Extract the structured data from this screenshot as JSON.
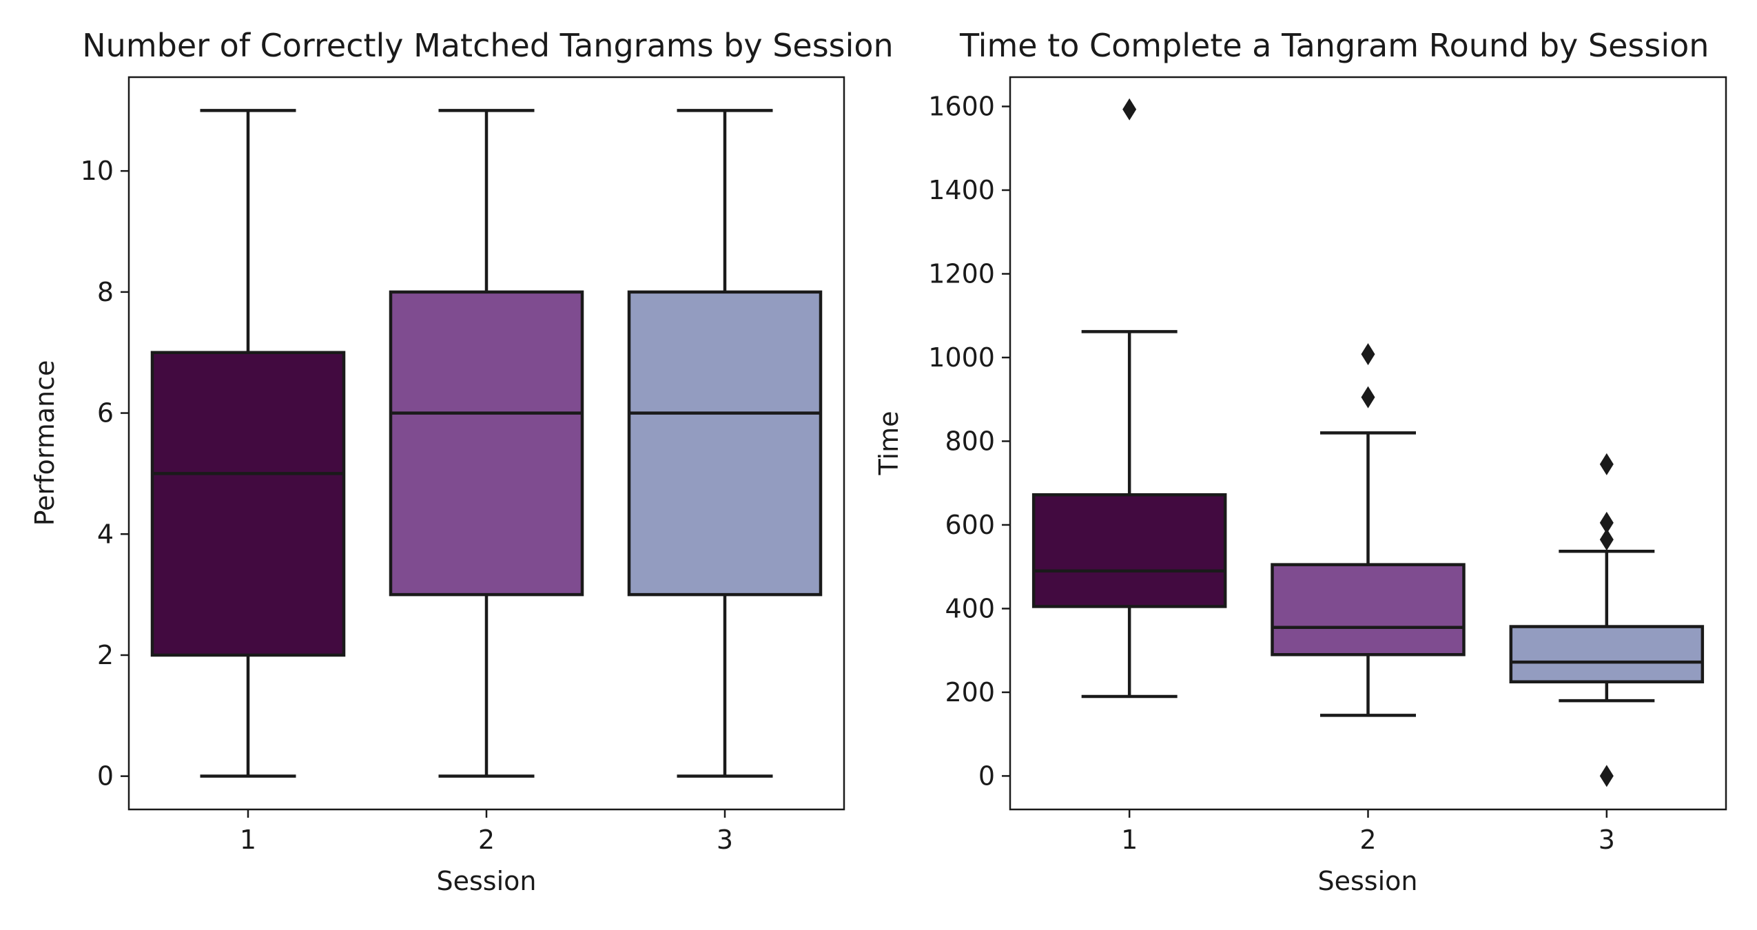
{
  "chart_data": [
    {
      "type": "box",
      "title": "Number of Correctly Matched Tangrams by Session",
      "xlabel": "Session",
      "ylabel": "Performance",
      "ylim": [
        -0.55,
        11.55
      ],
      "yticks": [
        0,
        2,
        4,
        6,
        8,
        10
      ],
      "categories": [
        "1",
        "2",
        "3"
      ],
      "boxes": [
        {
          "category": "1",
          "whisker_low": 0,
          "q1": 2,
          "median": 5,
          "q3": 7,
          "whisker_high": 11,
          "outliers": [],
          "color": "#420a40"
        },
        {
          "category": "2",
          "whisker_low": 0,
          "q1": 3,
          "median": 6,
          "q3": 8,
          "whisker_high": 11,
          "outliers": [],
          "color": "#7f4c90"
        },
        {
          "category": "3",
          "whisker_low": 0,
          "q1": 3,
          "median": 6,
          "q3": 8,
          "whisker_high": 11,
          "outliers": [],
          "color": "#939cc0"
        }
      ],
      "grid": false,
      "legend": "none"
    },
    {
      "type": "box",
      "title": "Time to Complete a Tangram Round by Session",
      "xlabel": "Session",
      "ylabel": "Time",
      "ylim": [
        -80,
        1670
      ],
      "yticks": [
        0,
        200,
        400,
        600,
        800,
        1000,
        1200,
        1400,
        1600
      ],
      "categories": [
        "1",
        "2",
        "3"
      ],
      "boxes": [
        {
          "category": "1",
          "whisker_low": 190,
          "q1": 405,
          "median": 490,
          "q3": 672,
          "whisker_high": 1062,
          "outliers": [
            1593
          ],
          "color": "#420a40"
        },
        {
          "category": "2",
          "whisker_low": 145,
          "q1": 290,
          "median": 355,
          "q3": 505,
          "whisker_high": 820,
          "outliers": [
            905,
            1008
          ],
          "color": "#7f4c90"
        },
        {
          "category": "3",
          "whisker_low": 180,
          "q1": 225,
          "median": 272,
          "q3": 357,
          "whisker_high": 537,
          "outliers": [
            0,
            565,
            605,
            745
          ],
          "color": "#939cc0"
        }
      ],
      "grid": false,
      "legend": "none"
    }
  ]
}
